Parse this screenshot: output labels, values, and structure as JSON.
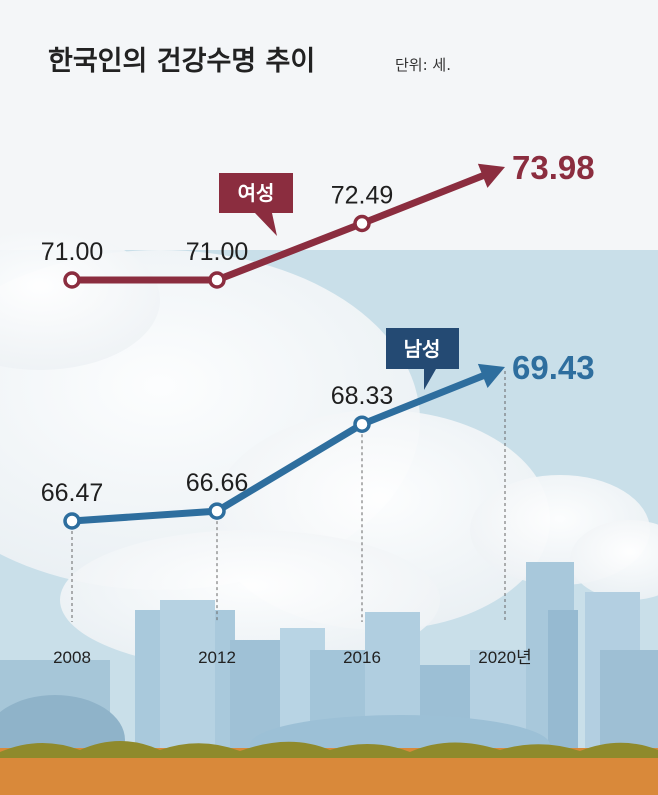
{
  "title": "한국인의 건강수명 추이",
  "unit": "단위: 세.",
  "colors": {
    "female": "#8b2d3f",
    "male": "#2e6e9e",
    "male_tag": "#244a73",
    "ground": "#d9893a",
    "grass": "#8f8a2c"
  },
  "chart_data": {
    "type": "line",
    "categories": [
      "2008",
      "2012",
      "2016",
      "2020년"
    ],
    "series": [
      {
        "name": "여성",
        "values": [
          71.0,
          71.0,
          72.49,
          73.98
        ],
        "labels": [
          "71.00",
          "71.00",
          "72.49",
          "73.98"
        ]
      },
      {
        "name": "남성",
        "values": [
          66.47,
          66.66,
          68.33,
          69.43
        ],
        "labels": [
          "66.47",
          "66.66",
          "68.33",
          "69.43"
        ]
      }
    ]
  }
}
